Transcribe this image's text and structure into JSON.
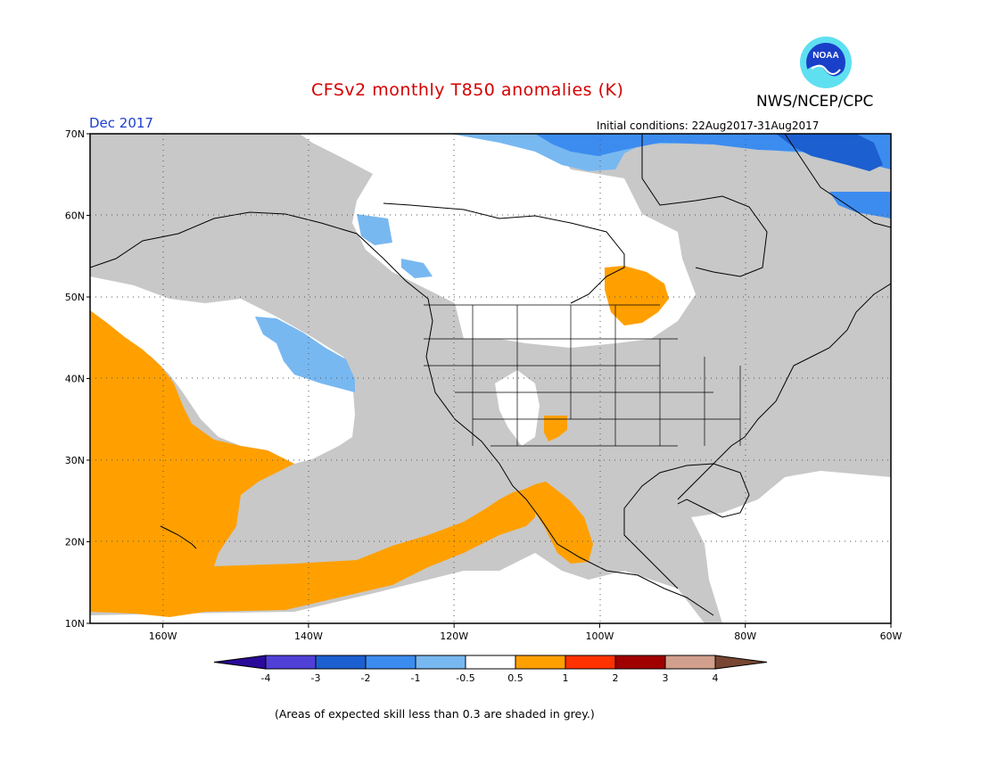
{
  "header": {
    "title": "CFSv2 monthly T850 anomalies (K)",
    "agency": "NWS/NCEP/CPC",
    "period": "Dec 2017",
    "initial_conditions": "Initial conditions: 22Aug2017-31Aug2017",
    "logo_text": "NOAA"
  },
  "map": {
    "lon_range": [
      -170,
      -60
    ],
    "lat_range": [
      10,
      70
    ],
    "lat_labels": [
      "70N",
      "60N",
      "50N",
      "40N",
      "30N",
      "20N",
      "10N"
    ],
    "lon_labels": [
      "160W",
      "140W",
      "120W",
      "100W",
      "80W",
      "60W"
    ],
    "colors": {
      "grey_low_skill": "#c8c8c8",
      "neutral": "#ffffff",
      "pos_0_5_to_1": "#ffa000",
      "neg_0_5_to_1": "#78b8f0",
      "neg_1_to_2": "#3c8cf0",
      "neg_2_to_3": "#1c5fd0"
    }
  },
  "colorbar": {
    "labels": [
      "-4",
      "-3",
      "-2",
      "-1",
      "-0.5",
      "0.5",
      "1",
      "2",
      "3",
      "4"
    ],
    "colors": [
      "#2a0a9a",
      "#5040d8",
      "#1c5fd0",
      "#3c8cf0",
      "#78b8f0",
      "#ffffff",
      "#ffa000",
      "#ff3200",
      "#a00000",
      "#d2a08c",
      "#784632"
    ]
  },
  "footnote": "(Areas of expected skill less than 0.3 are shaded in grey.)"
}
